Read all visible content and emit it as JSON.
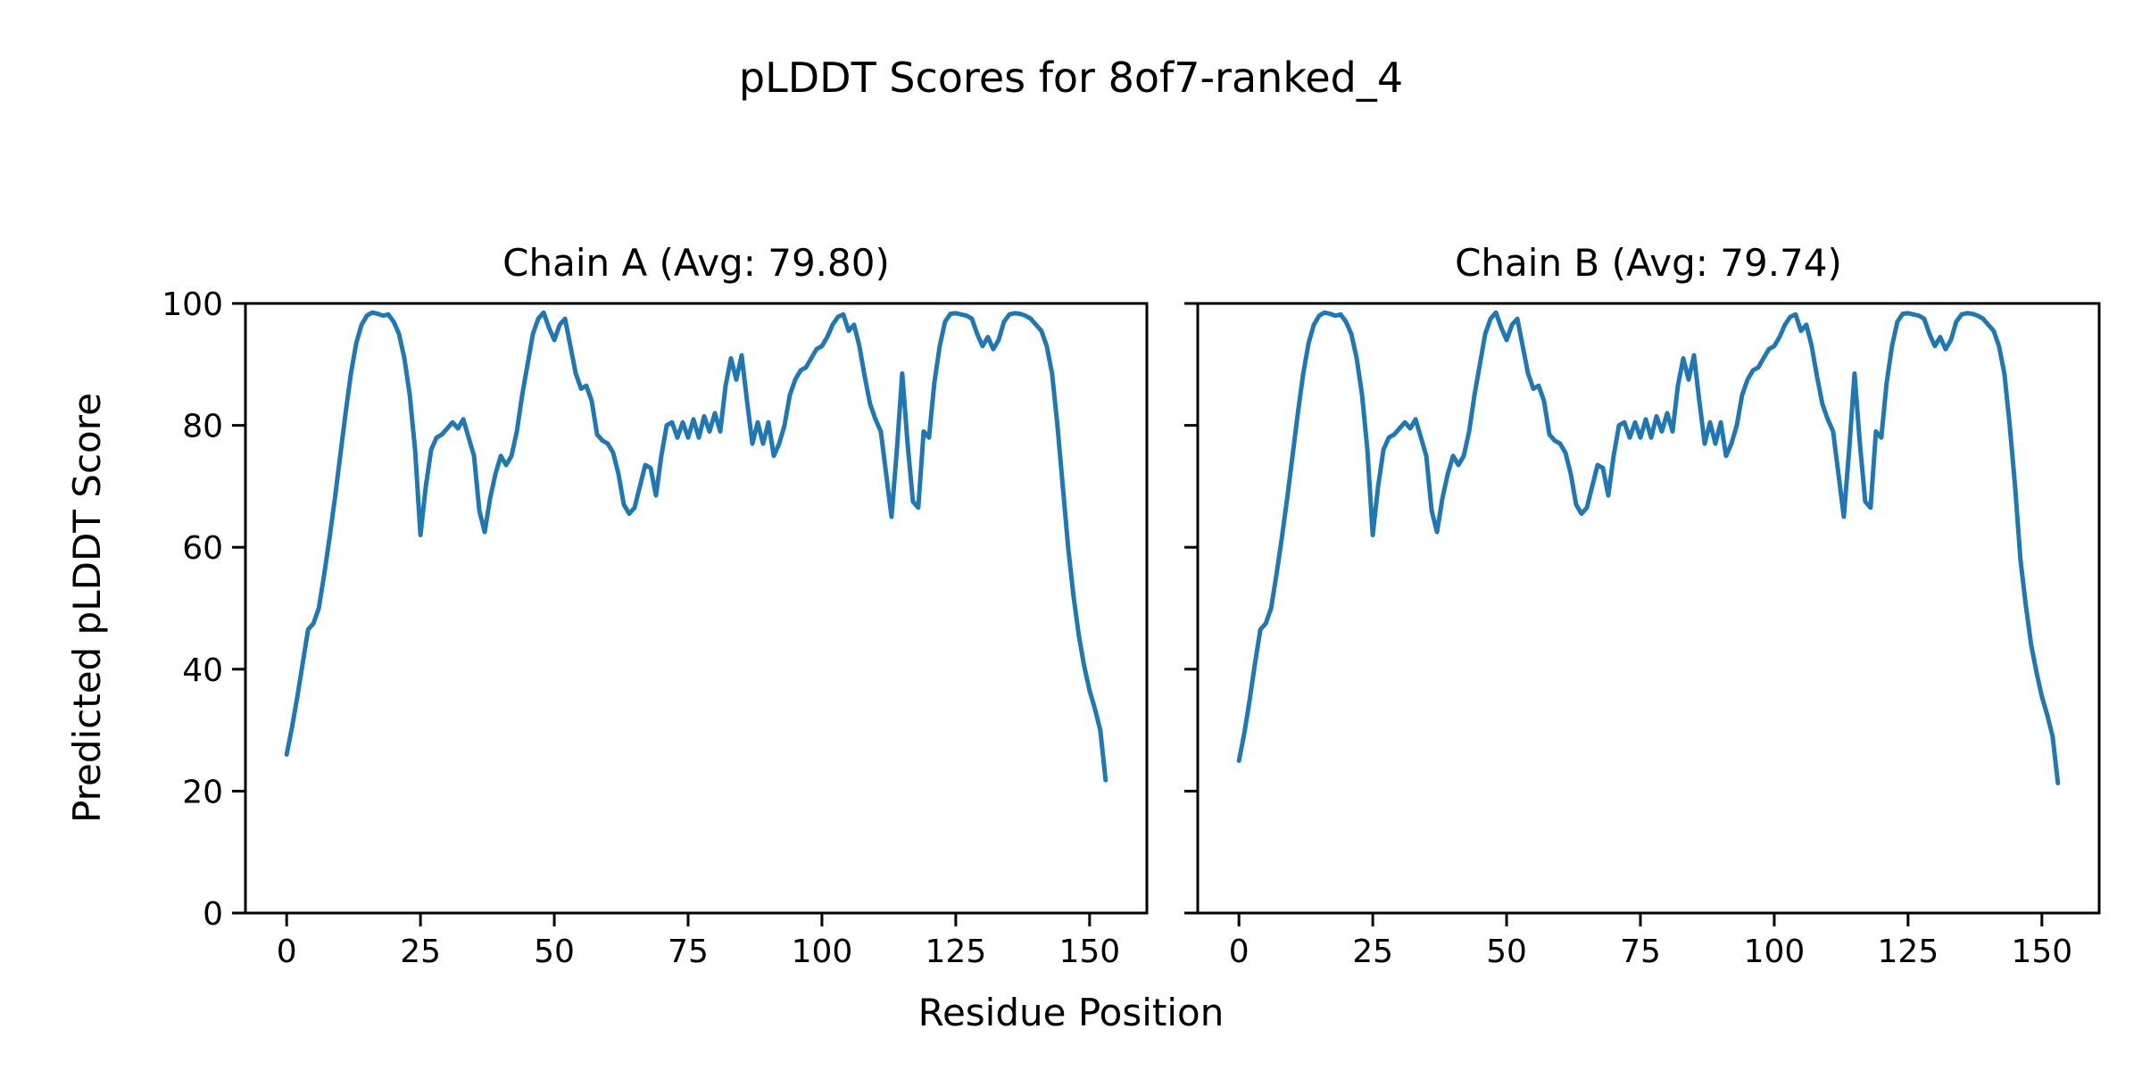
{
  "figure": {
    "suptitle": "pLDDT Scores for 8of7-ranked_4"
  },
  "chart_data": {
    "type": "line",
    "title": "pLDDT Scores for 8of7-ranked_4",
    "xlabel": "Residue Position",
    "ylabel": "Predicted pLDDT Score",
    "line_color": "#1f77b4",
    "axis_color": "#000000",
    "grid": false,
    "legend_position": "none",
    "x_ticks": [
      0,
      25,
      50,
      75,
      100,
      125,
      150
    ],
    "y_ticks": [
      0,
      20,
      40,
      60,
      80,
      100
    ],
    "xlim": [
      -7.7,
      160.7
    ],
    "ylim": [
      0,
      100
    ],
    "x_start": 0,
    "subplots": [
      {
        "title": "Chain A (Avg: 79.80)",
        "chain": "A",
        "avg": "79.80",
        "y_tick_labels": true,
        "values": [
          26.0,
          30.5,
          35.5,
          41.0,
          46.5,
          47.5,
          50.0,
          55.5,
          61.5,
          68.0,
          75.0,
          82.0,
          88.5,
          93.5,
          96.5,
          98.0,
          98.5,
          98.3,
          98.0,
          98.2,
          97.0,
          95.0,
          91.0,
          85.0,
          76.0,
          62.0,
          70.0,
          76.0,
          78.0,
          78.5,
          79.5,
          80.5,
          79.5,
          81.0,
          78.0,
          75.0,
          66.0,
          62.5,
          68.0,
          72.0,
          75.0,
          73.5,
          75.0,
          79.0,
          85.0,
          90.0,
          95.0,
          97.5,
          98.5,
          96.0,
          94.0,
          96.5,
          97.5,
          93.0,
          88.5,
          86.0,
          86.5,
          84.0,
          78.5,
          77.5,
          77.0,
          75.5,
          72.0,
          67.0,
          65.5,
          66.5,
          70.0,
          73.5,
          73.0,
          68.5,
          75.0,
          80.0,
          80.5,
          78.0,
          80.5,
          78.0,
          81.0,
          78.0,
          81.5,
          79.0,
          82.0,
          79.0,
          86.5,
          91.0,
          87.5,
          91.5,
          84.0,
          77.0,
          80.5,
          77.0,
          80.5,
          75.0,
          77.0,
          80.0,
          85.0,
          87.5,
          89.0,
          89.5,
          91.0,
          92.5,
          93.0,
          94.5,
          96.5,
          97.8,
          98.2,
          95.5,
          96.5,
          93.0,
          88.0,
          83.5,
          81.0,
          79.0,
          72.0,
          65.0,
          76.0,
          88.5,
          77.0,
          67.5,
          66.5,
          79.0,
          78.0,
          87.0,
          93.0,
          97.0,
          98.3,
          98.4,
          98.2,
          98.0,
          97.5,
          95.0,
          93.0,
          94.5,
          92.5,
          94.0,
          97.0,
          98.2,
          98.4,
          98.3,
          98.0,
          97.5,
          96.5,
          95.5,
          93.0,
          88.5,
          80.0,
          70.0,
          60.0,
          52.0,
          45.5,
          40.5,
          36.5,
          33.5,
          30.0,
          21.8
        ]
      },
      {
        "title": "Chain B (Avg: 79.74)",
        "chain": "B",
        "avg": "79.74",
        "y_tick_labels": false,
        "values": [
          25.0,
          29.5,
          35.0,
          41.0,
          46.5,
          47.5,
          50.0,
          55.5,
          61.5,
          68.0,
          75.0,
          82.0,
          88.5,
          93.5,
          96.5,
          98.0,
          98.5,
          98.3,
          98.0,
          98.2,
          97.0,
          95.0,
          91.0,
          85.0,
          76.0,
          62.0,
          70.0,
          76.0,
          78.0,
          78.5,
          79.5,
          80.5,
          79.5,
          81.0,
          78.0,
          75.0,
          66.0,
          62.5,
          68.0,
          72.0,
          75.0,
          73.5,
          75.0,
          79.0,
          85.0,
          90.0,
          95.0,
          97.5,
          98.5,
          96.0,
          94.0,
          96.5,
          97.5,
          93.0,
          88.5,
          86.0,
          86.5,
          84.0,
          78.5,
          77.5,
          77.0,
          75.5,
          72.0,
          67.0,
          65.5,
          66.5,
          70.0,
          73.5,
          73.0,
          68.5,
          75.0,
          80.0,
          80.5,
          78.0,
          80.5,
          78.0,
          81.0,
          78.0,
          81.5,
          79.0,
          82.0,
          79.0,
          86.5,
          91.0,
          87.5,
          91.5,
          84.0,
          77.0,
          80.5,
          77.0,
          80.5,
          75.0,
          77.0,
          80.0,
          85.0,
          87.5,
          89.0,
          89.5,
          91.0,
          92.5,
          93.0,
          94.5,
          96.5,
          97.8,
          98.2,
          95.5,
          96.5,
          93.0,
          88.0,
          83.5,
          81.0,
          79.0,
          72.0,
          65.0,
          76.0,
          88.5,
          77.0,
          67.5,
          66.5,
          79.0,
          78.0,
          87.0,
          93.0,
          97.0,
          98.3,
          98.4,
          98.2,
          98.0,
          97.5,
          95.0,
          93.0,
          94.5,
          92.5,
          94.0,
          97.0,
          98.2,
          98.4,
          98.3,
          98.0,
          97.5,
          96.5,
          95.5,
          93.0,
          88.5,
          80.0,
          70.0,
          58.0,
          50.5,
          44.0,
          39.5,
          35.5,
          32.5,
          29.0,
          21.3
        ]
      }
    ]
  }
}
